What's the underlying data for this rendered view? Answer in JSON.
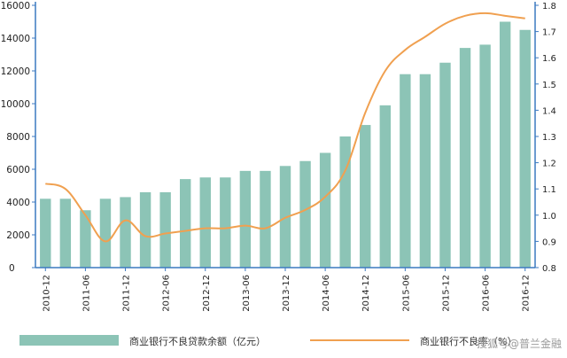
{
  "chart_data": {
    "type": "bar",
    "categories": [
      "2010-12",
      "2011-03",
      "2011-06",
      "2011-09",
      "2011-12",
      "2012-03",
      "2012-06",
      "2012-09",
      "2012-12",
      "2013-03",
      "2013-06",
      "2013-09",
      "2013-12",
      "2014-03",
      "2014-06",
      "2014-09",
      "2014-12",
      "2015-03",
      "2015-06",
      "2015-09",
      "2015-12",
      "2016-03",
      "2016-06",
      "2016-09",
      "2016-12"
    ],
    "x_tick_labels": [
      "2010-12",
      "2011-06",
      "2011-12",
      "2012-06",
      "2012-12",
      "2013-06",
      "2013-12",
      "2014-06",
      "2014-12",
      "2015-06",
      "2015-12",
      "2016-06",
      "2016-12"
    ],
    "series": [
      {
        "name": "商业银行不良贷款余额（亿元）",
        "type": "bar",
        "axis": "left",
        "color": "#8cc4b6",
        "values": [
          4200,
          4200,
          3500,
          4200,
          4300,
          4600,
          4600,
          5400,
          5500,
          5500,
          5900,
          5900,
          6200,
          6500,
          7000,
          8000,
          8700,
          9900,
          11800,
          11800,
          12500,
          13400,
          13600,
          15000,
          14500
        ]
      },
      {
        "name": "商业银行不良率（%）",
        "type": "line",
        "axis": "right",
        "color": "#f0a050",
        "values": [
          1.12,
          1.1,
          1.0,
          0.9,
          0.98,
          0.92,
          0.93,
          0.94,
          0.95,
          0.95,
          0.96,
          0.95,
          0.99,
          1.02,
          1.07,
          1.17,
          1.39,
          1.55,
          1.63,
          1.68,
          1.73,
          1.76,
          1.77,
          1.76,
          1.75
        ]
      }
    ],
    "y_left": {
      "ylim": [
        0,
        16000
      ],
      "ticks": [
        0,
        2000,
        4000,
        6000,
        8000,
        10000,
        12000,
        14000,
        16000
      ]
    },
    "y_right": {
      "ylim": [
        0.8,
        1.8
      ],
      "ticks": [
        "0.8",
        "0.9",
        "1.0",
        "1.1",
        "1.2",
        "1.3",
        "1.4",
        "1.5",
        "1.6",
        "1.7",
        "1.8"
      ]
    },
    "legend_placement": "bottom",
    "grid": false
  },
  "legend": {
    "bar_label": "商业银行不良贷款余额（亿元）",
    "line_label": "商业银行不良率（%）"
  },
  "watermark": "搜狐号@普兰金融"
}
